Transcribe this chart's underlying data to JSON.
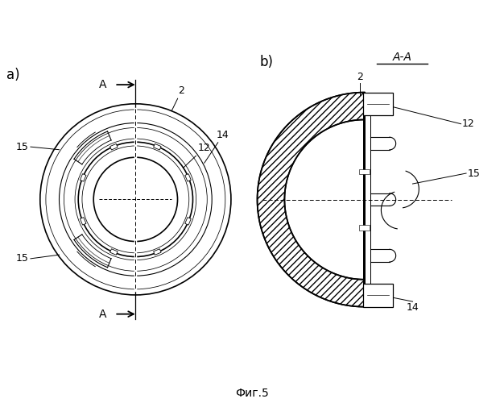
{
  "bg_color": "#ffffff",
  "line_color": "#000000",
  "fig_caption": "Фиг.5",
  "label_a": "a)",
  "label_b": "b)",
  "section_label": "A-A",
  "arrow_label": "A",
  "num_2_a": "2",
  "num_14_a": "14",
  "num_12_a": "12",
  "num_15_a_top": "15",
  "num_15_a_bot": "15",
  "num_2_b": "2",
  "num_12_b": "12",
  "num_14_b": "14",
  "num_15_b": "15"
}
